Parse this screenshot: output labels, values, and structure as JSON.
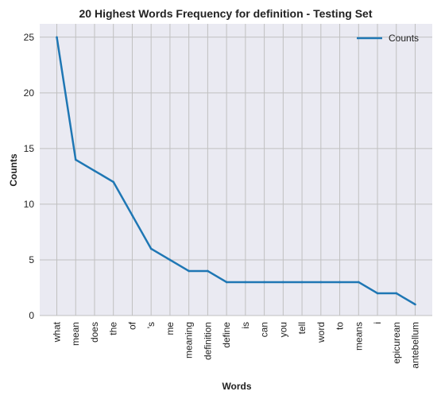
{
  "chart_data": {
    "type": "line",
    "title": "20 Highest Words Frequency for definition - Testing Set",
    "xlabel": "Words",
    "ylabel": "Counts",
    "categories": [
      "what",
      "mean",
      "does",
      "the",
      "of",
      "'s",
      "me",
      "meaning",
      "definition",
      "define",
      "is",
      "can",
      "you",
      "tell",
      "word",
      "to",
      "means",
      "i",
      "epicurean",
      "antebellum"
    ],
    "series": [
      {
        "name": "Counts",
        "values": [
          25,
          14,
          13,
          12,
          9,
          6,
          5,
          4,
          4,
          3,
          3,
          3,
          3,
          3,
          3,
          3,
          3,
          2,
          2,
          1
        ]
      }
    ],
    "ylim": [
      0,
      26.2
    ],
    "yticks": [
      0,
      5,
      10,
      15,
      20,
      25
    ],
    "grid": true,
    "legend_position": "top-right",
    "colors": {
      "line": "#1f77b4",
      "plot_bg": "#eaeaf2",
      "grid": "#c0c0c0"
    }
  }
}
